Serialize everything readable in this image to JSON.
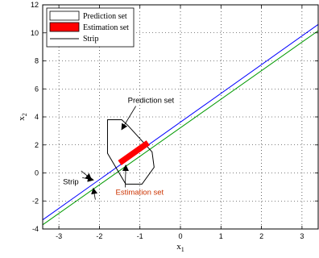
{
  "chart_data": {
    "type": "line",
    "title": "",
    "xlabel": "x",
    "xlabel_sub": "1",
    "ylabel": "x",
    "ylabel_sub": "2",
    "xlim": [
      -3.4,
      3.4
    ],
    "ylim": [
      -4,
      12
    ],
    "xticks": [
      -3,
      -2,
      -1,
      0,
      1,
      2,
      3
    ],
    "yticks": [
      -4,
      -2,
      0,
      2,
      4,
      6,
      8,
      10,
      12
    ],
    "grid": true,
    "legend_position": "top-left",
    "legend": [
      {
        "label": "Prediction set",
        "style": "box",
        "color": "#ffffff"
      },
      {
        "label": "Estimation set",
        "style": "filled",
        "color": "#ff0000"
      },
      {
        "label": "Strip",
        "style": "line",
        "color": "#000000"
      }
    ],
    "strip_lines": [
      {
        "color": "#0000ff",
        "x": [
          -3.4,
          3.4
        ],
        "y": [
          -3.35,
          10.6
        ]
      },
      {
        "color": "#009900",
        "x": [
          -3.4,
          3.4
        ],
        "y": [
          -3.7,
          10.15
        ]
      }
    ],
    "prediction_set": {
      "color": "#000000",
      "points": [
        [
          -1.8,
          3.8
        ],
        [
          -1.45,
          3.8
        ],
        [
          -1.3,
          3.4
        ],
        [
          -0.7,
          1.5
        ],
        [
          -0.65,
          0.4
        ],
        [
          -0.95,
          -0.8
        ],
        [
          -1.35,
          -0.8
        ],
        [
          -1.8,
          1.4
        ]
      ]
    },
    "estimation_set": {
      "color": "#ff0000",
      "x": [
        -1.5,
        -0.8
      ],
      "y": [
        0.72,
        2.15
      ],
      "width": 0.42
    },
    "annotations": [
      {
        "text": "Prediction set",
        "x": -1.3,
        "y": 5.0,
        "arrow_to": [
          -1.45,
          3.1
        ],
        "color": "#000000"
      },
      {
        "text": "Strip",
        "x": -2.9,
        "y": -0.8,
        "arrow_to": [
          -2.15,
          -0.5
        ],
        "color": "#000000"
      },
      {
        "text": "Estimation set",
        "x": -1.6,
        "y": -1.55,
        "arrow_to": [
          -1.35,
          0.55
        ],
        "color": "#cc3300"
      }
    ],
    "extra_arrows": [
      {
        "from": [
          -2.45,
          0.15
        ],
        "to": [
          -2.2,
          -0.45
        ]
      },
      {
        "from": [
          -2.1,
          -1.9
        ],
        "to": [
          -2.15,
          -1.1
        ]
      }
    ]
  }
}
